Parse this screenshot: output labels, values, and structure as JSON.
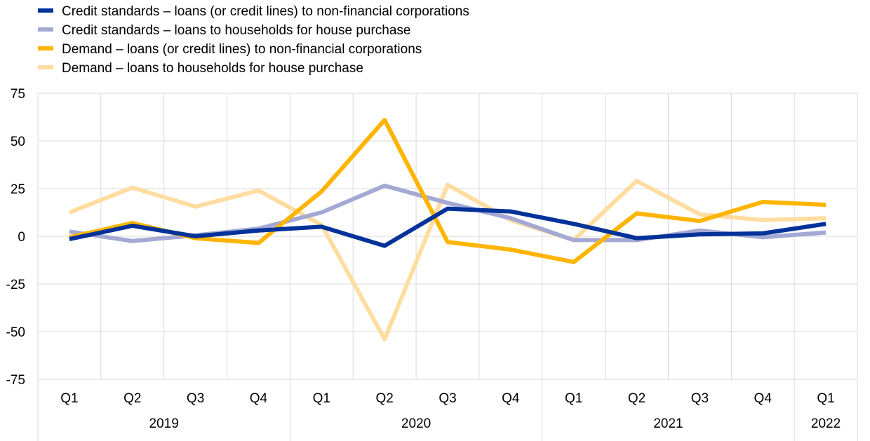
{
  "chart_data": {
    "type": "line",
    "categories": [
      "Q1",
      "Q2",
      "Q3",
      "Q4",
      "Q1",
      "Q2",
      "Q3",
      "Q4",
      "Q1",
      "Q2",
      "Q3",
      "Q4",
      "Q1"
    ],
    "year_groups": [
      {
        "label": "2019",
        "span": 4
      },
      {
        "label": "2020",
        "span": 4
      },
      {
        "label": "2021",
        "span": 4
      },
      {
        "label": "2022",
        "span": 1
      }
    ],
    "ylim": [
      -75,
      75
    ],
    "yticks": [
      75,
      50,
      25,
      0,
      -25,
      -50,
      -75
    ],
    "grid": true,
    "legend_position": "top-left",
    "series": [
      {
        "name": "Credit standards – loans (or credit lines) to non-financial corporations",
        "color": "#003299",
        "values": [
          -1.5,
          5.5,
          0,
          3,
          5,
          -5,
          14.5,
          13,
          6.5,
          -1,
          1,
          1.5,
          6.5
        ]
      },
      {
        "name": "Credit standards – loans to households for house purchase",
        "color": "#A4A9D4",
        "values": [
          2.5,
          -2.5,
          0.5,
          4,
          12.5,
          26.5,
          17.5,
          9.5,
          -2,
          -2,
          3,
          -0.5,
          2
        ]
      },
      {
        "name": "Demand – loans (or credit lines) to non-financial corporations",
        "color": "#FFB400",
        "values": [
          -0.5,
          7,
          -1,
          -3.5,
          23.5,
          61,
          -3,
          -7,
          -13.5,
          12,
          8,
          18,
          16.5
        ]
      },
      {
        "name": "Demand – loans to households for house purchase",
        "color": "#FFDDA0",
        "values": [
          12.5,
          25.5,
          15.5,
          24,
          6,
          -54,
          27,
          8.5,
          -2,
          29,
          11.5,
          8.5,
          9.5
        ]
      }
    ]
  }
}
